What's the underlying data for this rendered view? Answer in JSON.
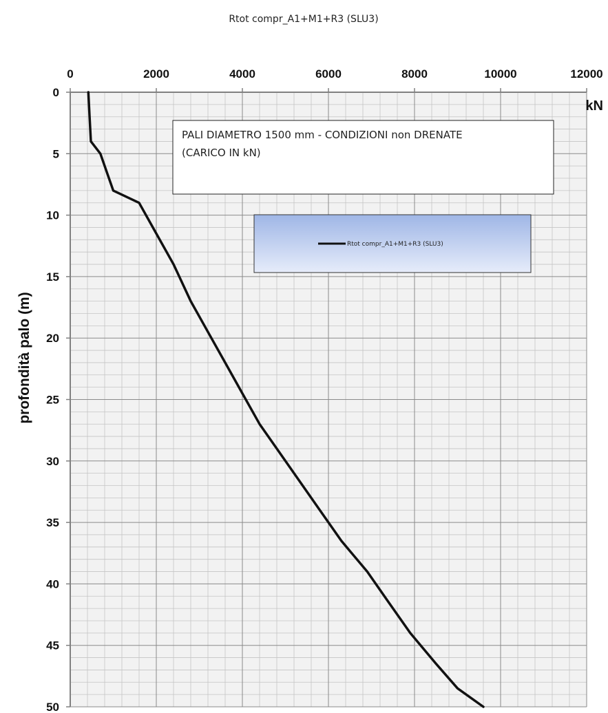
{
  "chart_data": {
    "type": "line",
    "title": "Rtot compr_A1+M1+R3 (SLU3)",
    "xlabel": "kN",
    "ylabel": "profondità palo (m)",
    "xlim": [
      0,
      12000
    ],
    "ylim": [
      0,
      50
    ],
    "y_inverted": true,
    "x_axis_position": "top",
    "grid": true,
    "x_ticks": [
      "0",
      "2000",
      "4000",
      "6000",
      "8000",
      "10000",
      "12000"
    ],
    "y_ticks": [
      "0",
      "5",
      "10",
      "15",
      "20",
      "25",
      "30",
      "35",
      "40",
      "45",
      "50"
    ],
    "annotation": [
      "PALI  DIAMETRO 1500 mm - CONDIZIONI non DRENATE",
      "(CARICO IN kN)"
    ],
    "legend": {
      "placement": "upper-right",
      "entries": [
        "Rtot compr_A1+M1+R3 (SLU3)"
      ]
    },
    "series": [
      {
        "name": "Rtot compr_A1+M1+R3 (SLU3)",
        "color": "#111111",
        "points": [
          [
            420,
            0
          ],
          [
            450,
            2
          ],
          [
            480,
            4
          ],
          [
            700,
            5
          ],
          [
            850,
            6.5
          ],
          [
            1000,
            8
          ],
          [
            1600,
            9
          ],
          [
            2000,
            11.5
          ],
          [
            2400,
            14
          ],
          [
            2800,
            17
          ],
          [
            3200,
            19.5
          ],
          [
            3600,
            22
          ],
          [
            4000,
            24.5
          ],
          [
            4400,
            27
          ],
          [
            4800,
            29
          ],
          [
            5300,
            31.5
          ],
          [
            5800,
            34
          ],
          [
            6300,
            36.5
          ],
          [
            6900,
            39
          ],
          [
            7400,
            41.5
          ],
          [
            7900,
            44
          ],
          [
            8500,
            46.5
          ],
          [
            9000,
            48.5
          ],
          [
            9600,
            50
          ]
        ]
      }
    ]
  }
}
